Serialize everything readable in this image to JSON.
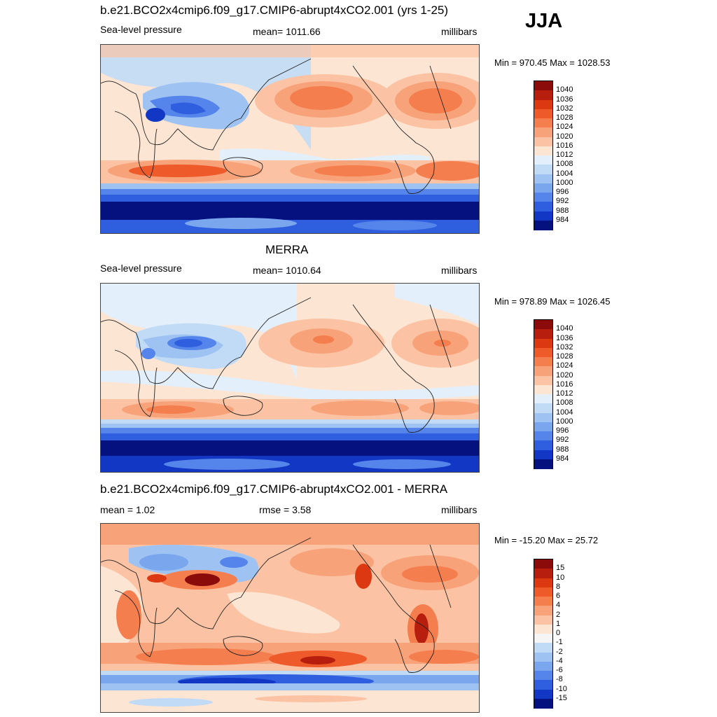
{
  "season": "JJA",
  "panels": [
    {
      "id": "model",
      "title": "b.e21.BCO2x4cmip6.f09_g17.CMIP6-abrupt4xCO2.001 (yrs 1-25)",
      "left_label": "Sea-level pressure",
      "center_label": "mean= 1011.66",
      "right_label": "millibars",
      "minmax": "Min = 970.45 Max = 1028.53"
    },
    {
      "id": "merra",
      "title": "MERRA",
      "left_label": "Sea-level pressure",
      "center_label": "mean= 1010.64",
      "right_label": "millibars",
      "minmax": "Min = 978.89 Max = 1026.45"
    },
    {
      "id": "diff",
      "title": "b.e21.BCO2x4cmip6.f09_g17.CMIP6-abrupt4xCO2.001 - MERRA",
      "left_label": "mean =   1.02",
      "center_label": "rmse =   3.58",
      "right_label": "millibars",
      "minmax": "Min = -15.20 Max =  25.72"
    }
  ],
  "slp_colorbar": {
    "labels": [
      "1040",
      "1036",
      "1032",
      "1028",
      "1024",
      "1020",
      "1016",
      "1012",
      "1008",
      "1004",
      "1000",
      "996",
      "992",
      "988",
      "984"
    ],
    "colors": [
      "#8b0a0a",
      "#b81e0e",
      "#dc3812",
      "#ee5a2a",
      "#f57e4e",
      "#f8a27a",
      "#fbc3a3",
      "#fde5d3",
      "#e3effa",
      "#c1dbf6",
      "#9ec3f2",
      "#7aa6ee",
      "#5585ea",
      "#2f5fdf",
      "#1137c4",
      "#04117f"
    ]
  },
  "diff_colorbar": {
    "labels": [
      "15",
      "10",
      "8",
      "6",
      "4",
      "2",
      "1",
      "0",
      "-1",
      "-2",
      "-4",
      "-6",
      "-8",
      "-10",
      "-15"
    ],
    "colors": [
      "#8b0a0a",
      "#b81e0e",
      "#dc3812",
      "#ee5a2a",
      "#f57e4e",
      "#f8a27a",
      "#fbc3a3",
      "#fde5d3",
      "#f5f5f5",
      "#c1dbf6",
      "#9ec3f2",
      "#7aa6ee",
      "#5585ea",
      "#2f5fdf",
      "#1137c4",
      "#04117f"
    ]
  },
  "chart_data": {
    "type": "heatmap",
    "variable": "Sea-level pressure",
    "units": "millibars",
    "season": "JJA",
    "maps": [
      {
        "name": "b.e21.BCO2x4cmip6.f09_g17.CMIP6-abrupt4xCO2.001 (yrs 1-25)",
        "mean": 1011.66,
        "min": 970.45,
        "max": 1028.53
      },
      {
        "name": "MERRA",
        "mean": 1010.64,
        "min": 978.89,
        "max": 1026.45
      },
      {
        "name": "b.e21.BCO2x4cmip6.f09_g17.CMIP6-abrupt4xCO2.001 - MERRA",
        "mean": 1.02,
        "rmse": 3.58,
        "min": -15.2,
        "max": 25.72
      }
    ],
    "slp_levels": [
      984,
      988,
      992,
      996,
      1000,
      1004,
      1008,
      1012,
      1016,
      1020,
      1024,
      1028,
      1032,
      1036,
      1040
    ],
    "diff_levels": [
      -15,
      -10,
      -8,
      -6,
      -4,
      -2,
      -1,
      0,
      1,
      2,
      4,
      6,
      8,
      10,
      15
    ]
  }
}
